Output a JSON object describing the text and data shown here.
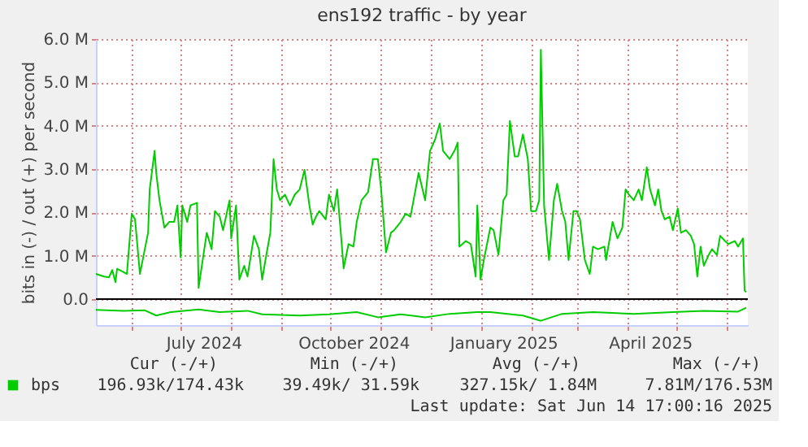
{
  "chart_data": {
    "type": "line",
    "title": "ens192 traffic - by year",
    "ylabel": "bits in (-) / out (+) per second",
    "xlim": [
      "2024-05-10",
      "2025-06-14"
    ],
    "xticks": [
      {
        "value": "2024-06-01",
        "label": null
      },
      {
        "value": "2024-07-01",
        "label": null
      },
      {
        "value": "2024-07-15",
        "label": "July 2024"
      },
      {
        "value": "2024-08-01",
        "label": null
      },
      {
        "value": "2024-09-01",
        "label": null
      },
      {
        "value": "2024-10-01",
        "label": null
      },
      {
        "value": "2024-10-15",
        "label": "October 2024"
      },
      {
        "value": "2024-11-01",
        "label": null
      },
      {
        "value": "2024-12-01",
        "label": null
      },
      {
        "value": "2025-01-01",
        "label": null
      },
      {
        "value": "2025-01-15",
        "label": "January 2025"
      },
      {
        "value": "2025-02-01",
        "label": null
      },
      {
        "value": "2025-03-01",
        "label": null
      },
      {
        "value": "2025-04-01",
        "label": null
      },
      {
        "value": "2025-04-15",
        "label": "April 2025"
      },
      {
        "value": "2025-05-01",
        "label": null
      },
      {
        "value": "2025-06-01",
        "label": null
      }
    ],
    "ylim": [
      -0.6,
      6.0
    ],
    "yticks": [
      {
        "value": 0,
        "label": "0.0"
      },
      {
        "value": 1,
        "label": "1.0 M"
      },
      {
        "value": 2,
        "label": "2.0 M"
      },
      {
        "value": 3,
        "label": "3.0 M"
      },
      {
        "value": 4,
        "label": "4.0 M"
      },
      {
        "value": 5,
        "label": "5.0 M"
      },
      {
        "value": 6,
        "label": "6.0 M"
      }
    ],
    "grid": true,
    "legend": "bottom",
    "marker": "none",
    "line_style": "solid",
    "ref_lines": [
      {
        "axis": "y",
        "value": 0,
        "color": "#000000"
      }
    ],
    "series": [
      {
        "name": "bps",
        "color": "#00cc00",
        "x": [
          "2024-05-10",
          "2024-05-15",
          "2024-05-18",
          "2024-05-20",
          "2024-05-22",
          "2024-05-23",
          "2024-05-27",
          "2024-05-29",
          "2024-06-01",
          "2024-06-03",
          "2024-06-06",
          "2024-06-09",
          "2024-06-11",
          "2024-06-12",
          "2024-06-15",
          "2024-06-16",
          "2024-06-18",
          "2024-06-21",
          "2024-06-24",
          "2024-06-27",
          "2024-06-29",
          "2024-07-01",
          "2024-07-02",
          "2024-07-05",
          "2024-07-07",
          "2024-07-11",
          "2024-07-12",
          "2024-07-14",
          "2024-07-17",
          "2024-07-20",
          "2024-07-22",
          "2024-07-25",
          "2024-07-27",
          "2024-07-31",
          "2024-08-01",
          "2024-08-04",
          "2024-08-06",
          "2024-08-09",
          "2024-08-11",
          "2024-08-15",
          "2024-08-18",
          "2024-08-20",
          "2024-08-22",
          "2024-08-25",
          "2024-08-27",
          "2024-08-29",
          "2024-08-31",
          "2024-09-03",
          "2024-09-06",
          "2024-09-09",
          "2024-09-12",
          "2024-09-15",
          "2024-09-18",
          "2024-09-20",
          "2024-09-22",
          "2024-09-24",
          "2024-09-28",
          "2024-09-30",
          "2024-10-03",
          "2024-10-05",
          "2024-10-07",
          "2024-10-09",
          "2024-10-12",
          "2024-10-15",
          "2024-10-17",
          "2024-10-20",
          "2024-10-24",
          "2024-10-27",
          "2024-10-30",
          "2024-11-01",
          "2024-11-04",
          "2024-11-07",
          "2024-11-09",
          "2024-11-13",
          "2024-11-16",
          "2024-11-19",
          "2024-11-24",
          "2024-11-28",
          "2024-12-01",
          "2024-12-04",
          "2024-12-07",
          "2024-12-09",
          "2024-12-13",
          "2024-12-16",
          "2024-12-18",
          "2024-12-19",
          "2024-12-23",
          "2024-12-26",
          "2024-12-29",
          "2024-12-30",
          "2025-01-01",
          "2025-01-03",
          "2025-01-07",
          "2025-01-09",
          "2025-01-12",
          "2025-01-15",
          "2025-01-17",
          "2025-01-19",
          "2025-01-22",
          "2025-01-24",
          "2025-01-27",
          "2025-01-30",
          "2025-02-01",
          "2025-02-04",
          "2025-02-06",
          "2025-02-07",
          "2025-02-09",
          "2025-02-12",
          "2025-02-15",
          "2025-02-17",
          "2025-02-20",
          "2025-02-22",
          "2025-02-24",
          "2025-02-27",
          "2025-03-01",
          "2025-03-03",
          "2025-03-06",
          "2025-03-09",
          "2025-03-11",
          "2025-03-14",
          "2025-03-18",
          "2025-03-19",
          "2025-03-23",
          "2025-03-26",
          "2025-03-29",
          "2025-03-31",
          "2025-04-02",
          "2025-04-05",
          "2025-04-08",
          "2025-04-10",
          "2025-04-13",
          "2025-04-15",
          "2025-04-18",
          "2025-04-20",
          "2025-04-22",
          "2025-04-24",
          "2025-04-27",
          "2025-04-29",
          "2025-05-02",
          "2025-05-04",
          "2025-05-07",
          "2025-05-10",
          "2025-05-12",
          "2025-05-14",
          "2025-05-16",
          "2025-05-18",
          "2025-05-21",
          "2025-05-23",
          "2025-05-26",
          "2025-05-28",
          "2025-05-31",
          "2025-06-02",
          "2025-06-06",
          "2025-06-08",
          "2025-06-11",
          "2025-06-12",
          "2025-06-13"
        ],
        "values": [
          0.58,
          0.52,
          0.5,
          0.67,
          0.39,
          0.7,
          0.62,
          0.58,
          1.97,
          1.84,
          0.58,
          1.15,
          1.53,
          2.53,
          3.42,
          2.91,
          2.28,
          1.65,
          1.78,
          1.78,
          2.16,
          0.96,
          2.16,
          1.78,
          2.16,
          2.22,
          0.26,
          0.77,
          1.53,
          1.15,
          2.03,
          1.9,
          1.59,
          2.28,
          1.4,
          2.16,
          0.45,
          0.77,
          0.52,
          1.46,
          1.15,
          0.45,
          0.9,
          1.53,
          3.23,
          2.53,
          2.28,
          2.41,
          2.16,
          2.41,
          2.53,
          2.98,
          2.16,
          1.72,
          1.9,
          2.03,
          1.84,
          2.41,
          2.03,
          2.53,
          1.65,
          0.71,
          1.27,
          1.21,
          1.78,
          2.28,
          2.47,
          3.23,
          3.23,
          2.53,
          1.08,
          1.53,
          1.59,
          1.78,
          1.97,
          1.9,
          2.91,
          2.28,
          3.42,
          3.67,
          4.05,
          3.42,
          3.23,
          3.42,
          3.61,
          1.21,
          1.34,
          1.27,
          0.52,
          2.16,
          0.45,
          0.9,
          1.65,
          1.59,
          1.02,
          2.28,
          2.41,
          4.11,
          3.29,
          3.29,
          3.8,
          3.23,
          2.03,
          2.03,
          2.28,
          5.75,
          2.16,
          0.9,
          2.28,
          2.66,
          2.03,
          1.78,
          0.9,
          2.03,
          2.03,
          1.84,
          0.9,
          0.58,
          1.21,
          1.15,
          1.21,
          0.9,
          1.78,
          1.4,
          1.65,
          2.53,
          2.41,
          2.28,
          2.53,
          2.28,
          3.04,
          2.53,
          2.16,
          2.53,
          2.03,
          1.84,
          1.9,
          1.59,
          2.09,
          1.53,
          1.59,
          1.46,
          1.27,
          0.52,
          1.21,
          0.77,
          1.02,
          1.15,
          1.02,
          1.46,
          1.34,
          1.27,
          1.34,
          1.21,
          1.4,
          0.2,
          0.16
        ]
      },
      {
        "color": "#00cc00",
        "x": [
          "2024-05-10",
          "2024-05-27",
          "2024-06-09",
          "2024-06-16",
          "2024-06-25",
          "2024-07-12",
          "2024-07-25",
          "2024-08-11",
          "2024-08-20",
          "2024-09-12",
          "2024-09-30",
          "2024-10-17",
          "2024-10-30",
          "2024-11-13",
          "2024-11-28",
          "2024-12-13",
          "2024-12-30",
          "2025-01-07",
          "2025-01-27",
          "2025-02-07",
          "2025-02-20",
          "2025-03-11",
          "2025-04-05",
          "2025-04-29",
          "2025-05-18",
          "2025-06-08",
          "2025-06-13"
        ],
        "values": [
          -0.25,
          -0.27,
          -0.26,
          -0.38,
          -0.3,
          -0.24,
          -0.3,
          -0.27,
          -0.35,
          -0.38,
          -0.35,
          -0.3,
          -0.42,
          -0.35,
          -0.42,
          -0.34,
          -0.3,
          -0.3,
          -0.38,
          -0.5,
          -0.34,
          -0.3,
          -0.34,
          -0.3,
          -0.27,
          -0.29,
          -0.2
        ]
      }
    ],
    "annotations": [
      "Cur (-/+)",
      "Min (-/+)",
      "Avg (-/+)",
      "Max (-/+)",
      "196.93k/174.43k",
      "39.49k/ 31.59k",
      "327.15k/ 1.84M",
      "7.81M/176.53M",
      "Last update: Sat Jun 14 17:00:16 2025"
    ]
  }
}
